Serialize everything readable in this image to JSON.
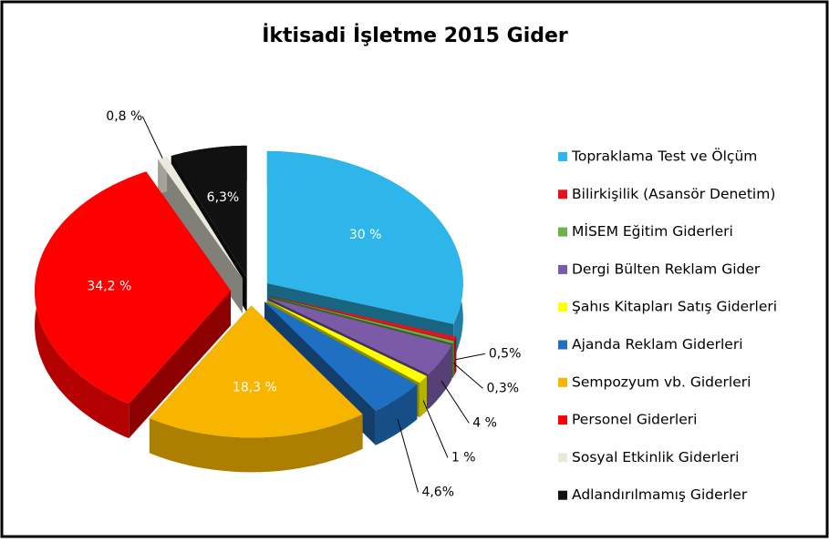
{
  "chart_data": {
    "type": "pie",
    "title": "İktisadi İşletme 2015 Gider",
    "categories": [
      "Topraklama Test ve Ölçüm",
      "Bilirkişilik (Asansör Denetim)",
      "MİSEM Eğitim Giderleri",
      "Dergi Bülten Reklam Gider",
      "Şahıs Kitapları Satış Giderleri",
      "Ajanda Reklam Giderleri",
      "Sempozyum vb. Giderleri",
      "Personel Giderleri",
      "Sosyal Etkinlik Giderleri",
      "Adlandırılmamış Giderler"
    ],
    "values": [
      30,
      0.5,
      0.3,
      4,
      1,
      4.6,
      18.3,
      34.2,
      0.8,
      6.3
    ],
    "value_labels": [
      "30 %",
      "0,5%",
      "0,3%",
      "4 %",
      "1 %",
      "4,6%",
      "18,3 %",
      "34,2 %",
      "0,8 %",
      "6,3%"
    ],
    "colors": [
      "#2eb6ea",
      "#e2141c",
      "#6cb24a",
      "#7b5ba8",
      "#ffff00",
      "#1f70c2",
      "#f7b500",
      "#ff0000",
      "#e9e9dc",
      "#111111"
    ],
    "legend": "right"
  }
}
